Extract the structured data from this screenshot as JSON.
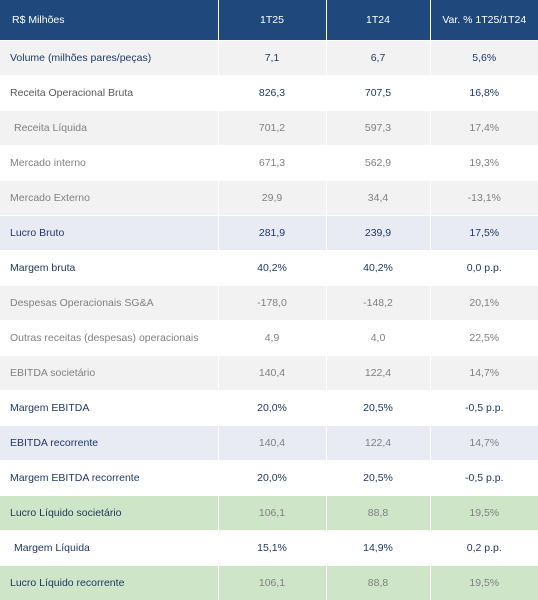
{
  "header": [
    "R$ Milhões",
    "1T25",
    "1T24",
    "Var. % 1T25/1T24"
  ],
  "rows": [
    {
      "label": "Volume (milhões pares/peças)",
      "v1": "7,1",
      "v2": "6,7",
      "var": "5,6%"
    },
    {
      "label": "Receita Operacional Bruta",
      "v1": "826,3",
      "v2": "707,5",
      "var": "16,8%"
    },
    {
      "label": "Receita Líquida",
      "v1": "701,2",
      "v2": "597,3",
      "var": "17,4%"
    },
    {
      "label": "Mercado interno",
      "v1": "671,3",
      "v2": "562,9",
      "var": "19,3%"
    },
    {
      "label": "Mercado Externo",
      "v1": "29,9",
      "v2": "34,4",
      "var": "-13,1%"
    },
    {
      "label": "Lucro Bruto",
      "v1": "281,9",
      "v2": "239,9",
      "var": "17,5%"
    },
    {
      "label": "Margem bruta",
      "v1": "40,2%",
      "v2": "40,2%",
      "var": "0,0 p.p."
    },
    {
      "label": "Despesas Operacionais SG&A",
      "v1": "-178,0",
      "v2": "-148,2",
      "var": "20,1%"
    },
    {
      "label": "Outras receitas (despesas) operacionais",
      "v1": "4,9",
      "v2": "4,0",
      "var": "22,5%"
    },
    {
      "label": "EBITDA societário",
      "v1": "140,4",
      "v2": "122,4",
      "var": "14,7%"
    },
    {
      "label": "Margem EBITDA",
      "v1": "20,0%",
      "v2": "20,5%",
      "var": "-0,5 p.p."
    },
    {
      "label": "EBITDA recorrente",
      "v1": "140,4",
      "v2": "122,4",
      "var": "14,7%"
    },
    {
      "label": "Margem EBITDA recorrente",
      "v1": "20,0%",
      "v2": "20,5%",
      "var": "-0,5 p.p."
    },
    {
      "label": "Lucro Líquido societário",
      "v1": "106,1",
      "v2": "88,8",
      "var": "19,5%"
    },
    {
      "label": "Margem Líquida",
      "v1": "15,1%",
      "v2": "14,9%",
      "var": "0,2 p.p."
    },
    {
      "label": "Lucro Líquido recorrente",
      "v1": "106,1",
      "v2": "88,8",
      "var": "19,5%"
    }
  ],
  "colors": {
    "header_bg": "#1f497d",
    "highlight_blue": "#e8ebf4",
    "highlight_green": "#cfe5c8",
    "stripe_gray": "#f2f2f2"
  }
}
